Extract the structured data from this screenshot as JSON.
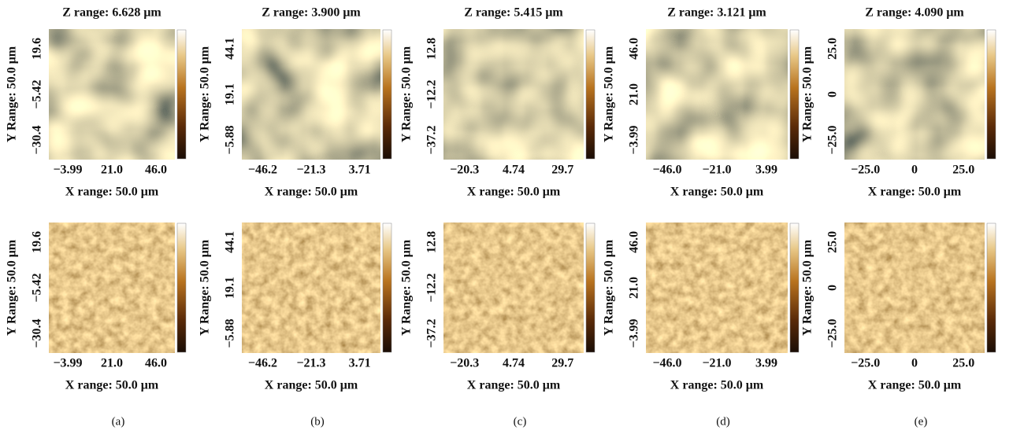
{
  "columns": [
    {
      "z_range": "Z range: 6.628 μm",
      "caption": "(a)",
      "images": [
        {
          "y_label": "Y Range: 50.0 μm",
          "y_ticks": [
            "−30.4",
            "−5.42",
            "19.6"
          ],
          "x_ticks": [
            "−3.99",
            "21.0",
            "46.0"
          ],
          "x_label": "X range: 50.0 μm"
        },
        {
          "y_label": "Y Range: 50.0 μm",
          "y_ticks": [
            "−30.4",
            "−5.42",
            "19.6"
          ],
          "x_ticks": [
            "−3.99",
            "21.0",
            "46.0"
          ],
          "x_label": "X range: 50.0 μm"
        }
      ]
    },
    {
      "z_range": "Z range: 3.900 μm",
      "caption": "(b)",
      "images": [
        {
          "y_label": "Y Range: 50.0 μm",
          "y_ticks": [
            "−5.88",
            "19.1",
            "44.1"
          ],
          "x_ticks": [
            "−46.2",
            "−21.3",
            "3.71"
          ],
          "x_label": "X range: 50.0 μm"
        },
        {
          "y_label": "Y Range: 50.0 μm",
          "y_ticks": [
            "−5.88",
            "19.1",
            "44.1"
          ],
          "x_ticks": [
            "−46.2",
            "−21.3",
            "3.71"
          ],
          "x_label": "X range: 50.0 μm"
        }
      ]
    },
    {
      "z_range": "Z range: 5.415 μm",
      "caption": "(c)",
      "images": [
        {
          "y_label": "Y Range: 50.0 μm",
          "y_ticks": [
            "−37.2",
            "−12.2",
            "12.8"
          ],
          "x_ticks": [
            "−20.3",
            "4.74",
            "29.7"
          ],
          "x_label": "X range: 50.0 μm"
        },
        {
          "y_label": "Y Range: 50.0 μm",
          "y_ticks": [
            "−37.2",
            "−12.2",
            "12.8"
          ],
          "x_ticks": [
            "−20.3",
            "4.74",
            "29.7"
          ],
          "x_label": "X range: 50.0 μm"
        }
      ]
    },
    {
      "z_range": "Z range: 3.121 μm",
      "caption": "(d)",
      "images": [
        {
          "y_label": "Y Range: 50.0 μm",
          "y_ticks": [
            "−3.99",
            "21.0",
            "46.0"
          ],
          "x_ticks": [
            "−46.0",
            "−21.0",
            "3.99"
          ],
          "x_label": "X range: 50.0 μm"
        },
        {
          "y_label": "Y Range: 50.0 μm",
          "y_ticks": [
            "−3.99",
            "21.0",
            "46.0"
          ],
          "x_ticks": [
            "−46.0",
            "−21.0",
            "3.99"
          ],
          "x_label": "X range: 50.0 μm"
        }
      ]
    },
    {
      "z_range": "Z range: 4.090 μm",
      "caption": "(e)",
      "images": [
        {
          "y_label": "Y Range: 50.0 μm",
          "y_ticks": [
            "−25.0",
            "0",
            "25.0"
          ],
          "x_ticks": [
            "−25.0",
            "0",
            "25.0"
          ],
          "x_label": "X range: 50.0 μm"
        },
        {
          "y_label": "Y Range: 50.0 μm",
          "y_ticks": [
            "−25.0",
            "0",
            "25.0"
          ],
          "x_ticks": [
            "−25.0",
            "0",
            "25.0"
          ],
          "x_label": "X range: 50.0 μm"
        }
      ]
    }
  ]
}
